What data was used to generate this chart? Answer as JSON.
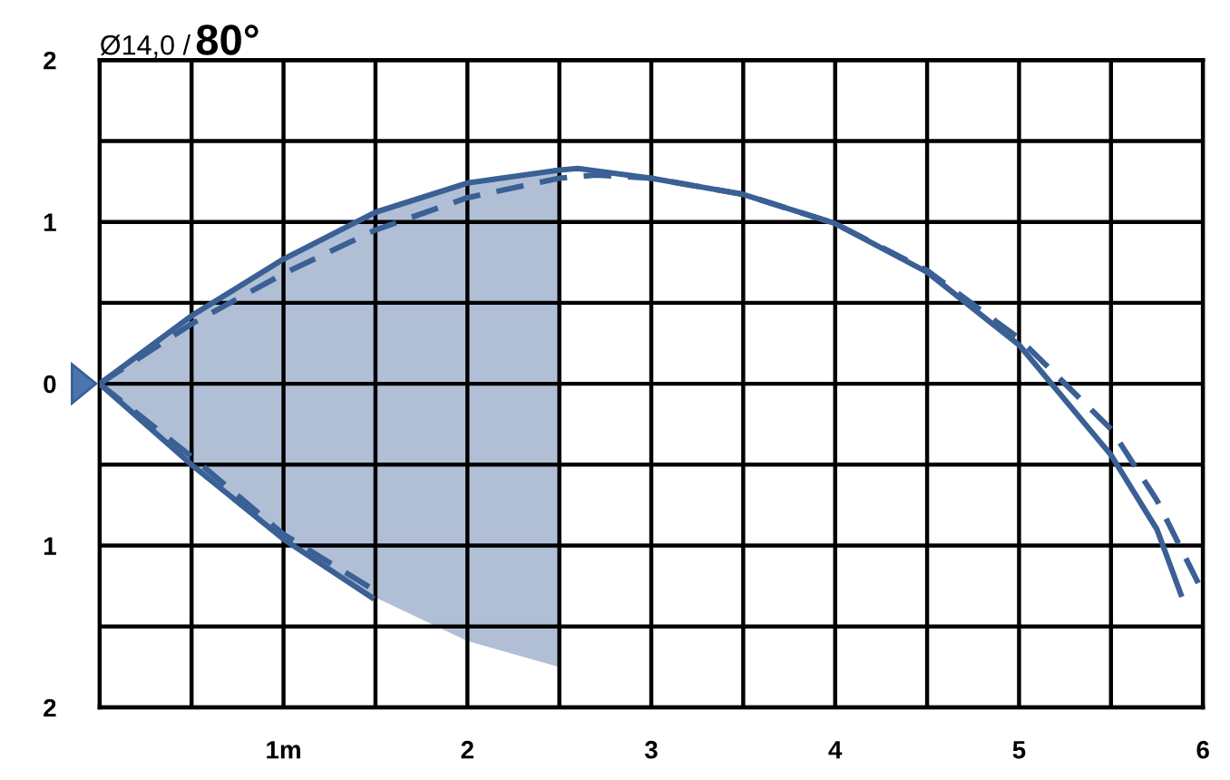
{
  "chart_data": {
    "type": "line",
    "title": "80°",
    "subtitle": "Ø14,0 /",
    "xlim": [
      0,
      6
    ],
    "ylim": [
      -2,
      2
    ],
    "xticks": [
      {
        "value": 0,
        "label": null
      },
      {
        "value": 0.5,
        "label": null
      },
      {
        "value": 1,
        "label": "1m"
      },
      {
        "value": 1.5,
        "label": null
      },
      2,
      {
        "value": 2.5,
        "label": null
      },
      3,
      {
        "value": 3.5,
        "label": null
      },
      4,
      {
        "value": 4.5,
        "label": null
      },
      5,
      {
        "value": 5.5,
        "label": null
      },
      6
    ],
    "yticks": [
      {
        "value": -2,
        "label": "2"
      },
      {
        "value": -1.5,
        "label": null
      },
      {
        "value": -1,
        "label": "1"
      },
      {
        "value": -0.5,
        "label": null
      },
      0,
      {
        "value": 0.5,
        "label": null
      },
      1,
      {
        "value": 1.5,
        "label": null
      },
      2
    ],
    "grid": true,
    "series": [
      {
        "color": "#3a6095",
        "line_style": "solid",
        "x": [
          0,
          0.5,
          1,
          1.5,
          2,
          2.5,
          2.6,
          3,
          3.5,
          4,
          4.5,
          5,
          5.5,
          5.75,
          5.88
        ],
        "values": [
          0,
          0.42,
          0.77,
          1.06,
          1.24,
          1.32,
          1.33,
          1.27,
          1.17,
          0.99,
          0.69,
          0.24,
          -0.44,
          -0.9,
          -1.3
        ],
        "upper": [
          0,
          0.42,
          0.77,
          1.06,
          1.24,
          1.32,
          null,
          null,
          null,
          null,
          null,
          null,
          null,
          null,
          null
        ],
        "lower": [
          0,
          -0.5,
          -0.96,
          -1.32,
          -1.59,
          -1.75,
          null,
          null,
          null,
          null,
          null,
          null,
          null,
          null,
          null
        ]
      },
      {
        "color": "#3a6095",
        "line_style": "dashed",
        "x": [
          0,
          0.5,
          1,
          1.5,
          2,
          2.5,
          2.7,
          3,
          3.5,
          4,
          4.5,
          5,
          5.5,
          5.75,
          6
        ],
        "values": [
          0,
          0.37,
          0.68,
          0.95,
          1.15,
          1.27,
          1.29,
          1.27,
          1.17,
          0.99,
          0.7,
          0.28,
          -0.28,
          -0.72,
          -1.29
        ]
      },
      {
        "color": "#3a6095",
        "line_style": "solid",
        "x": [
          0,
          0.5,
          1,
          1.48
        ],
        "values": [
          0,
          -0.5,
          -0.96,
          -1.32
        ]
      },
      {
        "color": "#3a6095",
        "line_style": "dashed",
        "x": [
          0,
          0.5,
          1,
          1.5
        ],
        "values": [
          0,
          -0.45,
          -0.93,
          -1.28
        ]
      }
    ]
  }
}
